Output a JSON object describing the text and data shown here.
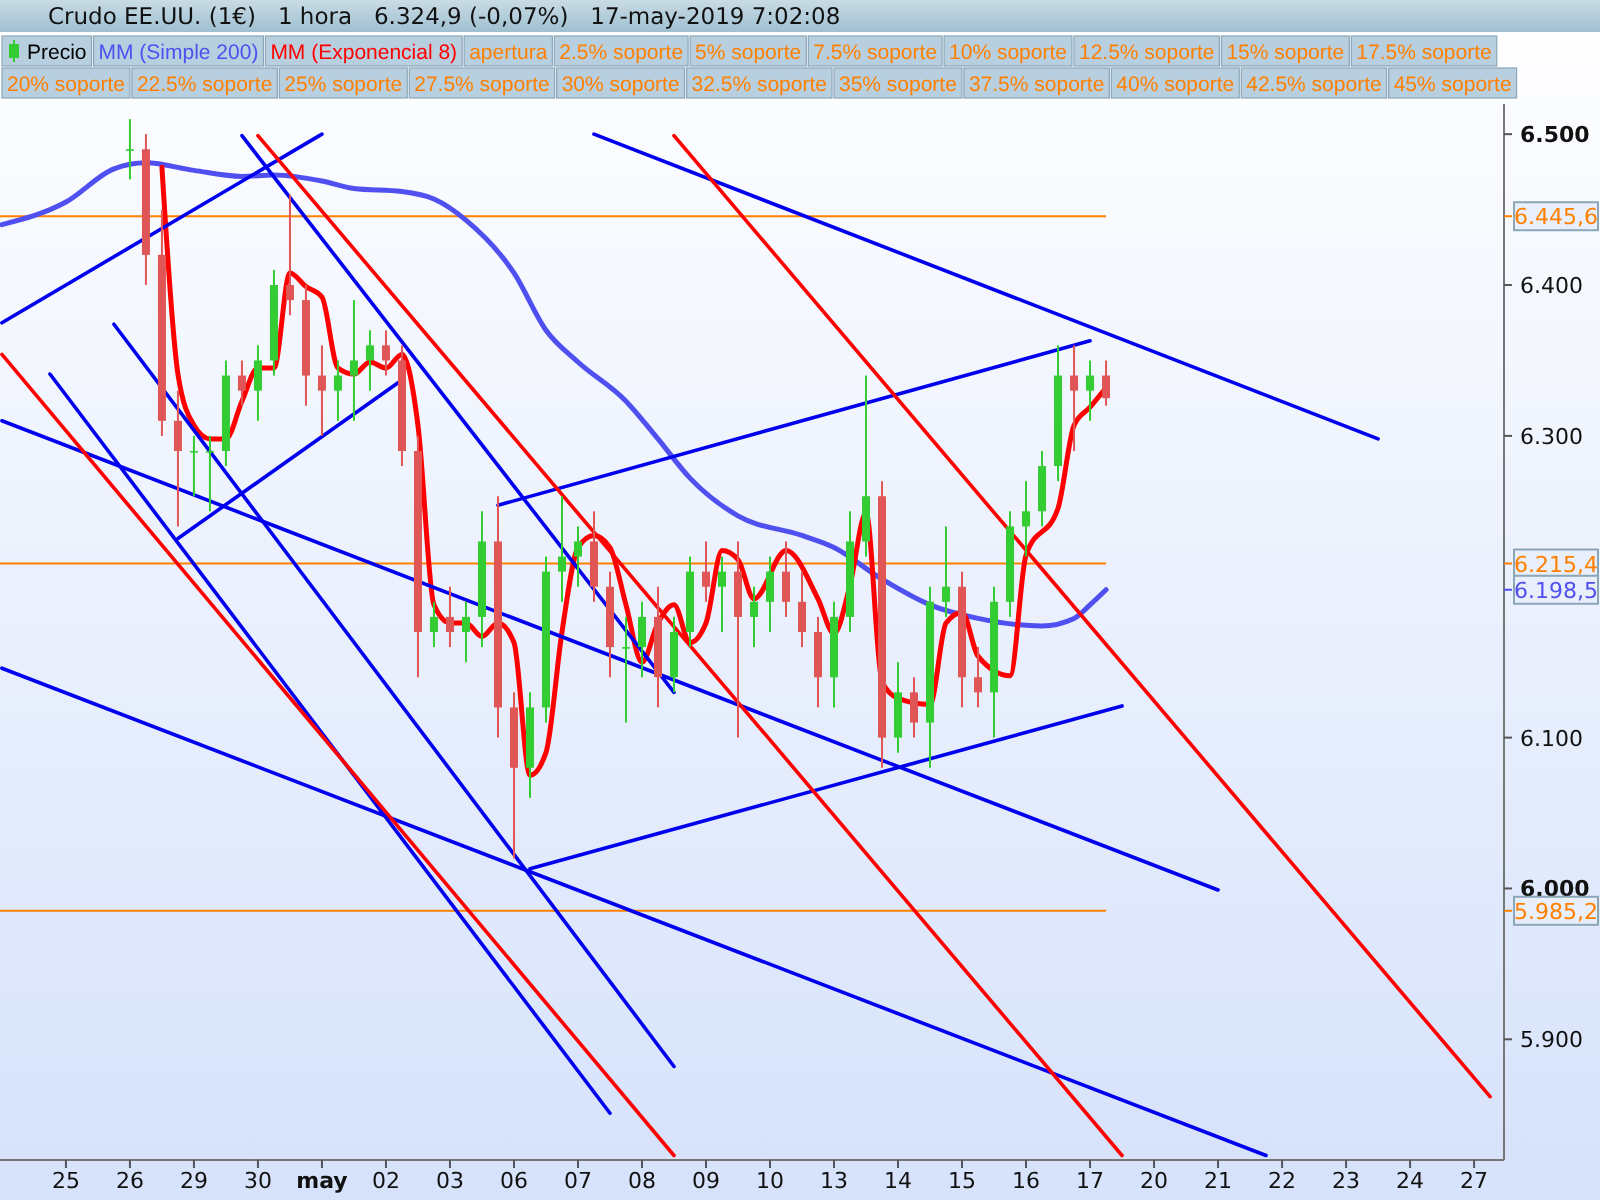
{
  "chart_data": {
    "type": "candlestick",
    "title": "Crudo EE.UU. (1€)   1 hora   6.324,9 (-0,07%)   17-may-2019 7:02:08",
    "legend": "top",
    "categories": [
      null,
      null,
      null,
      null,
      "25",
      null,
      null,
      null,
      "26",
      null,
      null,
      null,
      "29",
      null,
      null,
      null,
      "30",
      null,
      null,
      null,
      "may",
      null,
      null,
      null,
      "02",
      null,
      null,
      null,
      "03",
      null,
      null,
      null,
      "06",
      null,
      null,
      null,
      "07",
      null,
      null,
      null,
      "08",
      null,
      null,
      null,
      "09",
      null,
      null,
      null,
      "10",
      null,
      null,
      null,
      "13",
      null,
      null,
      null,
      "14",
      null,
      null,
      null,
      "15",
      null,
      null,
      null,
      "16",
      null,
      null,
      null,
      "17",
      null,
      null,
      null,
      "20",
      null,
      null,
      null,
      "21",
      null,
      null,
      null,
      "22",
      null,
      null,
      null,
      "23",
      null,
      null,
      null,
      "24",
      null,
      null,
      null,
      "27",
      null
    ],
    "ylim": [
      5.82,
      6.52
    ],
    "yticks": [
      {
        "value": 5.9,
        "label": "5.900"
      },
      {
        "value": 6.0,
        "label": "6.000"
      },
      {
        "value": 6.1,
        "label": "6.100"
      },
      {
        "value": 6.3,
        "label": "6.300"
      },
      {
        "value": 6.4,
        "label": "6.400"
      },
      {
        "value": 6.5,
        "label": "6.500"
      }
    ],
    "ref_lines": [
      {
        "axis": "y",
        "value": 6.4456,
        "label": "6.445,6",
        "color": "#ff8000"
      },
      {
        "axis": "y",
        "value": 6.2154,
        "label": "6.215,4",
        "color": "#ff8000"
      },
      {
        "axis": "y",
        "value": 5.9852,
        "label": "5.985,2",
        "color": "#ff8000"
      }
    ],
    "annotations": [
      "apertura",
      "2.5% soporte",
      "5% soporte",
      "7.5% soporte",
      "10% soporte",
      "12.5% soporte",
      "15% soporte",
      "17.5% soporte",
      "20% soporte",
      "22.5% soporte",
      "25% soporte",
      "27.5% soporte",
      "30% soporte",
      "32.5% soporte",
      "35% soporte",
      "37.5% soporte",
      "40% soporte",
      "42.5% soporte",
      "45% soporte",
      "6.198,5"
    ],
    "series": [
      {
        "type": "candlestick",
        "name": "Precio",
        "ohlc": [
          null,
          null,
          null,
          null,
          null,
          null,
          null,
          null,
          [
            6.49,
            6.51,
            6.47,
            6.49
          ],
          [
            6.49,
            6.5,
            6.4,
            6.42
          ],
          [
            6.42,
            6.45,
            6.3,
            6.31
          ],
          [
            6.31,
            6.33,
            6.24,
            6.29
          ],
          [
            6.29,
            6.3,
            6.26,
            6.29
          ],
          [
            6.29,
            6.3,
            6.25,
            6.29
          ],
          [
            6.29,
            6.35,
            6.28,
            6.34
          ],
          [
            6.34,
            6.35,
            6.32,
            6.33
          ],
          [
            6.33,
            6.36,
            6.31,
            6.35
          ],
          [
            6.35,
            6.41,
            6.34,
            6.4
          ],
          [
            6.4,
            6.46,
            6.38,
            6.39
          ],
          [
            6.39,
            6.4,
            6.32,
            6.34
          ],
          [
            6.34,
            6.36,
            6.3,
            6.33
          ],
          [
            6.33,
            6.35,
            6.31,
            6.34
          ],
          [
            6.34,
            6.39,
            6.31,
            6.35
          ],
          [
            6.35,
            6.37,
            6.33,
            6.36
          ],
          [
            6.36,
            6.37,
            6.34,
            6.35
          ],
          [
            6.35,
            6.36,
            6.28,
            6.29
          ],
          [
            6.29,
            6.3,
            6.14,
            6.17
          ],
          [
            6.17,
            6.19,
            6.16,
            6.18
          ],
          [
            6.18,
            6.2,
            6.16,
            6.17
          ],
          [
            6.17,
            6.19,
            6.15,
            6.18
          ],
          [
            6.18,
            6.25,
            6.16,
            6.23
          ],
          [
            6.23,
            6.26,
            6.1,
            6.12
          ],
          [
            6.12,
            6.13,
            6.02,
            6.08
          ],
          [
            6.08,
            6.13,
            6.06,
            6.12
          ],
          [
            6.12,
            6.22,
            6.11,
            6.21
          ],
          [
            6.21,
            6.26,
            6.19,
            6.22
          ],
          [
            6.22,
            6.24,
            6.2,
            6.23
          ],
          [
            6.23,
            6.25,
            6.19,
            6.2
          ],
          [
            6.2,
            6.21,
            6.14,
            6.16
          ],
          [
            6.16,
            6.18,
            6.11,
            6.16
          ],
          [
            6.16,
            6.19,
            6.14,
            6.18
          ],
          [
            6.18,
            6.2,
            6.12,
            6.14
          ],
          [
            6.14,
            6.18,
            6.13,
            6.17
          ],
          [
            6.17,
            6.22,
            6.16,
            6.21
          ],
          [
            6.21,
            6.23,
            6.19,
            6.2
          ],
          [
            6.2,
            6.22,
            6.17,
            6.21
          ],
          [
            6.21,
            6.23,
            6.1,
            6.18
          ],
          [
            6.18,
            6.2,
            6.16,
            6.19
          ],
          [
            6.19,
            6.22,
            6.17,
            6.21
          ],
          [
            6.21,
            6.23,
            6.18,
            6.19
          ],
          [
            6.19,
            6.21,
            6.16,
            6.17
          ],
          [
            6.17,
            6.18,
            6.12,
            6.14
          ],
          [
            6.14,
            6.19,
            6.12,
            6.18
          ],
          [
            6.18,
            6.25,
            6.17,
            6.23
          ],
          [
            6.23,
            6.34,
            6.22,
            6.26
          ],
          [
            6.26,
            6.27,
            6.08,
            6.1
          ],
          [
            6.1,
            6.15,
            6.09,
            6.13
          ],
          [
            6.13,
            6.14,
            6.1,
            6.11
          ],
          [
            6.11,
            6.2,
            6.08,
            6.19
          ],
          [
            6.19,
            6.24,
            6.18,
            6.2
          ],
          [
            6.2,
            6.21,
            6.12,
            6.14
          ],
          [
            6.14,
            6.16,
            6.12,
            6.13
          ],
          [
            6.13,
            6.2,
            6.1,
            6.19
          ],
          [
            6.19,
            6.25,
            6.18,
            6.24
          ],
          [
            6.24,
            6.27,
            6.22,
            6.25
          ],
          [
            6.25,
            6.29,
            6.24,
            6.28
          ],
          [
            6.28,
            6.36,
            6.27,
            6.34
          ],
          [
            6.34,
            6.36,
            6.29,
            6.33
          ],
          [
            6.33,
            6.35,
            6.31,
            6.34
          ],
          [
            6.34,
            6.35,
            6.32,
            6.325
          ],
          null,
          null,
          null,
          null,
          null,
          null,
          null,
          null,
          null,
          null,
          null,
          null,
          null,
          null,
          null,
          null,
          null,
          null,
          null,
          null,
          null,
          null,
          null,
          null
        ]
      },
      {
        "type": "line",
        "name": "MM (Simple 200)",
        "color": "#5050f0",
        "values": [
          6.44,
          null,
          null,
          null,
          6.455,
          null,
          null,
          6.477,
          null,
          6.481,
          null,
          null,
          6.476,
          null,
          null,
          6.472,
          null,
          6.473,
          null,
          null,
          6.469,
          null,
          6.464,
          null,
          null,
          6.462,
          null,
          6.457,
          null,
          6.443,
          null,
          null,
          6.408,
          null,
          6.37,
          null,
          6.349,
          null,
          null,
          6.323,
          null,
          6.298,
          null,
          6.272,
          null,
          null,
          6.247,
          null,
          null,
          null,
          6.234,
          null,
          6.226,
          null,
          null,
          6.205,
          null,
          null,
          6.188,
          null,
          null,
          6.179,
          null,
          null,
          null,
          6.174,
          null,
          6.179,
          6.188,
          6.198,
          null,
          null,
          null,
          null,
          null,
          null,
          null,
          null,
          null,
          null,
          null,
          null,
          null,
          null,
          null,
          null,
          null,
          null,
          null,
          null,
          null,
          null,
          null,
          null
        ]
      },
      {
        "type": "line",
        "name": "MM (Exponencial 8)",
        "color": "#ff0000",
        "values": [
          null,
          null,
          null,
          null,
          null,
          null,
          null,
          null,
          null,
          null,
          6.478,
          6.341,
          6.307,
          6.298,
          6.298,
          6.323,
          6.345,
          6.345,
          6.408,
          6.399,
          6.392,
          6.345,
          6.341,
          6.349,
          6.345,
          6.354,
          6.307,
          6.188,
          6.176,
          6.176,
          6.167,
          6.176,
          6.163,
          6.075,
          6.09,
          6.17,
          6.226,
          6.234,
          6.226,
          6.188,
          6.15,
          6.176,
          6.188,
          6.163,
          6.176,
          6.224,
          6.218,
          6.192,
          null,
          6.224,
          null,
          6.192,
          6.169,
          6.201,
          6.249,
          6.137,
          6.126,
          null,
          6.122,
          6.176,
          6.183,
          6.154,
          null,
          6.141,
          6.221,
          null,
          6.252,
          6.307,
          6.319,
          6.332,
          null,
          null,
          null,
          null,
          null,
          null,
          null,
          null,
          null,
          null,
          null,
          null,
          null,
          null,
          null,
          null,
          null,
          null,
          null,
          null,
          null,
          null,
          null,
          null
        ]
      },
      {
        "type": "line",
        "color": "#0000ee",
        "values": [
          6.375,
          null,
          null,
          null,
          null,
          null,
          null,
          null,
          null,
          null,
          null,
          null,
          null,
          null,
          null,
          null,
          null,
          null,
          null,
          null,
          6.5,
          null,
          null,
          null,
          null,
          null,
          null,
          null,
          null,
          null,
          null,
          null,
          null,
          null,
          null,
          null,
          null,
          null,
          null,
          null,
          null,
          null,
          null,
          null,
          null,
          null,
          null,
          null,
          null,
          null,
          null,
          null,
          null,
          null,
          null,
          null,
          null,
          null,
          null,
          null,
          null,
          null,
          null,
          null,
          null,
          null,
          null,
          null,
          null,
          null,
          null,
          null,
          null,
          null,
          null,
          null,
          null,
          null,
          null,
          null,
          null,
          null,
          null,
          null,
          null,
          null,
          null,
          null,
          null,
          null,
          null,
          null,
          null,
          null
        ]
      },
      {
        "type": "line",
        "color": "#0000ee",
        "values": [
          null,
          null,
          null,
          null,
          null,
          null,
          null,
          6.374,
          null,
          null,
          null,
          null,
          null,
          null,
          null,
          null,
          null,
          null,
          null,
          null,
          null,
          null,
          null,
          null,
          null,
          null,
          null,
          null,
          null,
          null,
          null,
          null,
          null,
          null,
          null,
          null,
          null,
          null,
          null,
          null,
          null,
          null,
          5.882,
          null,
          null,
          null,
          null,
          null,
          null,
          null,
          null,
          null,
          null,
          null,
          null,
          null,
          null,
          null,
          null,
          null,
          null,
          null,
          null,
          null,
          null,
          null,
          null,
          null,
          null,
          null,
          null,
          null,
          null,
          null,
          null,
          null,
          null,
          null,
          null,
          null,
          null,
          null,
          null,
          null,
          null,
          null,
          null,
          null,
          null,
          null,
          null,
          null,
          null,
          null
        ]
      },
      {
        "type": "line",
        "color": "#0000ee",
        "values": [
          null,
          null,
          null,
          6.341,
          null,
          null,
          null,
          null,
          null,
          null,
          null,
          null,
          null,
          null,
          null,
          null,
          null,
          null,
          null,
          null,
          null,
          null,
          null,
          null,
          null,
          null,
          null,
          null,
          null,
          null,
          null,
          null,
          null,
          null,
          null,
          null,
          null,
          null,
          5.851,
          null,
          null,
          null,
          null,
          null,
          null,
          null,
          null,
          null,
          null,
          null,
          null,
          null,
          null,
          null,
          null,
          null,
          null,
          null,
          null,
          null,
          null,
          null,
          null,
          null,
          null,
          null,
          null,
          null,
          null,
          null,
          null,
          null,
          null,
          null,
          null,
          null,
          null,
          null,
          null,
          null,
          null,
          null,
          null,
          null,
          null,
          null,
          null,
          null,
          null,
          null,
          null,
          null,
          null,
          null
        ]
      },
      {
        "type": "line",
        "color": "#0000ee",
        "values": [
          6.31,
          null,
          null,
          null,
          null,
          null,
          null,
          null,
          null,
          null,
          null,
          null,
          null,
          null,
          null,
          null,
          null,
          null,
          null,
          null,
          null,
          null,
          null,
          null,
          null,
          null,
          null,
          null,
          null,
          null,
          null,
          null,
          null,
          null,
          null,
          null,
          null,
          null,
          null,
          null,
          null,
          null,
          null,
          null,
          null,
          null,
          null,
          null,
          null,
          null,
          null,
          null,
          null,
          null,
          null,
          null,
          null,
          null,
          null,
          null,
          null,
          null,
          null,
          null,
          null,
          null,
          null,
          null,
          null,
          null,
          null,
          null,
          null,
          null,
          null,
          null,
          5.999,
          null,
          null,
          null,
          null,
          null,
          null,
          null,
          null,
          null,
          null,
          null,
          null,
          null,
          null,
          null,
          null,
          null
        ]
      },
      {
        "type": "line",
        "color": "#0000ee",
        "values": [
          6.146,
          null,
          null,
          null,
          null,
          null,
          null,
          null,
          null,
          null,
          null,
          null,
          null,
          null,
          null,
          null,
          null,
          null,
          null,
          null,
          null,
          null,
          null,
          null,
          null,
          null,
          null,
          null,
          null,
          null,
          null,
          null,
          null,
          null,
          null,
          null,
          null,
          null,
          null,
          null,
          null,
          null,
          null,
          null,
          null,
          null,
          null,
          null,
          null,
          null,
          null,
          null,
          null,
          null,
          null,
          null,
          null,
          null,
          null,
          null,
          null,
          null,
          null,
          null,
          null,
          null,
          null,
          null,
          null,
          null,
          null,
          null,
          null,
          null,
          null,
          null,
          null,
          null,
          null,
          5.823,
          null,
          null,
          null,
          null,
          null,
          null,
          null,
          null,
          null,
          null,
          null,
          null,
          null,
          null
        ]
      },
      {
        "type": "line",
        "color": "#0000ee",
        "values": [
          null,
          null,
          null,
          null,
          null,
          null,
          null,
          null,
          null,
          null,
          null,
          null,
          null,
          null,
          null,
          null,
          null,
          null,
          null,
          null,
          null,
          null,
          null,
          null,
          null,
          null,
          null,
          null,
          null,
          null,
          null,
          null,
          null,
          6.013,
          null,
          null,
          null,
          null,
          null,
          null,
          null,
          null,
          null,
          null,
          null,
          null,
          null,
          null,
          null,
          null,
          null,
          null,
          null,
          null,
          null,
          null,
          null,
          null,
          null,
          null,
          null,
          null,
          null,
          null,
          null,
          null,
          null,
          null,
          null,
          null,
          6.121,
          null,
          null,
          null,
          null,
          null,
          null,
          null,
          null,
          null,
          null,
          null,
          null,
          null,
          null,
          null,
          null,
          null,
          null,
          null,
          null,
          null,
          null,
          null
        ]
      },
      {
        "type": "line",
        "color": "#0000ee",
        "values": [
          null,
          null,
          null,
          null,
          null,
          null,
          null,
          null,
          null,
          null,
          null,
          6.232,
          null,
          null,
          null,
          null,
          null,
          null,
          null,
          null,
          null,
          null,
          null,
          null,
          null,
          6.337,
          null,
          null,
          null,
          null,
          null,
          null,
          null,
          null,
          null,
          null,
          null,
          null,
          null,
          null,
          null,
          null,
          null,
          null,
          null,
          null,
          null,
          null,
          null,
          null,
          null,
          null,
          null,
          null,
          null,
          null,
          null,
          null,
          null,
          null,
          null,
          null,
          null,
          null,
          null,
          null,
          null,
          null,
          null,
          null,
          null,
          null,
          null,
          null,
          null,
          null,
          null,
          null,
          null,
          null,
          null,
          null,
          null,
          null,
          null,
          null,
          null,
          null,
          null,
          null,
          null,
          null,
          null,
          null
        ]
      },
      {
        "type": "line",
        "color": "#0000ee",
        "values": [
          null,
          null,
          null,
          null,
          null,
          null,
          null,
          null,
          null,
          null,
          null,
          null,
          null,
          null,
          null,
          null,
          null,
          null,
          null,
          null,
          null,
          null,
          null,
          null,
          null,
          null,
          null,
          null,
          null,
          null,
          null,
          6.254,
          null,
          null,
          null,
          null,
          null,
          null,
          null,
          null,
          null,
          null,
          null,
          null,
          null,
          null,
          null,
          null,
          null,
          null,
          null,
          null,
          null,
          null,
          null,
          null,
          null,
          null,
          null,
          null,
          null,
          null,
          null,
          null,
          null,
          null,
          null,
          null,
          6.363,
          null,
          null,
          null,
          null,
          null,
          null,
          null,
          null,
          null,
          null,
          null,
          null,
          null,
          null,
          null,
          null,
          null,
          null,
          null,
          null,
          null,
          null,
          null,
          null,
          null
        ]
      },
      {
        "type": "line",
        "color": "#0000ee",
        "values": [
          null,
          null,
          null,
          null,
          null,
          null,
          null,
          null,
          null,
          null,
          null,
          null,
          null,
          null,
          null,
          6.499,
          null,
          null,
          null,
          null,
          null,
          null,
          null,
          null,
          null,
          null,
          null,
          null,
          null,
          null,
          null,
          null,
          null,
          null,
          null,
          null,
          null,
          null,
          null,
          null,
          null,
          null,
          6.13,
          null,
          null,
          null,
          null,
          null,
          null,
          null,
          null,
          null,
          null,
          null,
          null,
          null,
          null,
          null,
          null,
          null,
          null,
          null,
          null,
          null,
          null,
          null,
          null,
          null,
          null,
          null,
          null,
          null,
          null,
          null,
          null,
          null,
          null,
          null,
          null,
          null,
          null,
          null,
          null,
          null,
          null,
          null,
          null,
          null,
          null,
          null,
          null,
          null,
          null,
          null
        ]
      },
      {
        "type": "line",
        "color": "#0000ee",
        "values": [
          null,
          null,
          null,
          null,
          null,
          null,
          null,
          null,
          null,
          null,
          null,
          null,
          null,
          null,
          null,
          null,
          null,
          null,
          null,
          null,
          null,
          null,
          null,
          null,
          null,
          null,
          null,
          null,
          null,
          null,
          null,
          null,
          null,
          null,
          null,
          null,
          null,
          6.5,
          null,
          null,
          null,
          null,
          null,
          null,
          null,
          null,
          null,
          null,
          null,
          null,
          null,
          null,
          null,
          null,
          null,
          null,
          null,
          null,
          null,
          null,
          null,
          null,
          null,
          null,
          null,
          null,
          null,
          null,
          null,
          null,
          null,
          null,
          null,
          null,
          null,
          null,
          null,
          null,
          null,
          null,
          null,
          null,
          null,
          null,
          null,
          null,
          6.298,
          null,
          null,
          null,
          null,
          null,
          null,
          null
        ]
      },
      {
        "type": "line",
        "color": "#ff0000",
        "values": [
          6.354,
          null,
          null,
          null,
          null,
          null,
          null,
          null,
          null,
          null,
          null,
          null,
          null,
          null,
          null,
          null,
          null,
          null,
          null,
          null,
          null,
          null,
          null,
          null,
          null,
          null,
          null,
          null,
          null,
          null,
          null,
          null,
          null,
          null,
          null,
          null,
          null,
          null,
          null,
          null,
          null,
          null,
          5.823,
          null,
          null,
          null,
          null,
          null,
          null,
          null,
          null,
          null,
          null,
          null,
          null,
          null,
          null,
          null,
          null,
          null,
          null,
          null,
          null,
          null,
          null,
          null,
          null,
          null,
          null,
          null,
          null,
          null,
          null,
          null,
          null,
          null,
          null,
          null,
          null,
          null,
          null,
          null,
          null,
          null,
          null,
          null,
          null,
          null,
          null,
          null,
          null,
          null,
          null,
          null
        ]
      },
      {
        "type": "line",
        "color": "#ff0000",
        "values": [
          null,
          null,
          null,
          null,
          null,
          null,
          null,
          null,
          null,
          null,
          null,
          null,
          null,
          null,
          null,
          null,
          6.499,
          null,
          null,
          null,
          null,
          null,
          null,
          null,
          null,
          null,
          null,
          null,
          null,
          null,
          null,
          null,
          null,
          null,
          null,
          null,
          null,
          null,
          null,
          null,
          null,
          null,
          null,
          null,
          null,
          null,
          null,
          null,
          null,
          null,
          null,
          null,
          null,
          null,
          null,
          null,
          null,
          null,
          null,
          null,
          null,
          null,
          null,
          null,
          null,
          null,
          null,
          null,
          null,
          null,
          5.823,
          null,
          null,
          null,
          null,
          null,
          null,
          null,
          null,
          null,
          null,
          null,
          null,
          null,
          null,
          null,
          null,
          null,
          null,
          null,
          null,
          null,
          null,
          null
        ]
      },
      {
        "type": "line",
        "color": "#ff0000",
        "values": [
          null,
          null,
          null,
          null,
          null,
          null,
          null,
          null,
          null,
          null,
          null,
          null,
          null,
          null,
          null,
          null,
          null,
          null,
          null,
          null,
          null,
          null,
          null,
          null,
          null,
          null,
          null,
          null,
          null,
          null,
          null,
          null,
          null,
          null,
          null,
          null,
          null,
          null,
          null,
          null,
          null,
          null,
          6.499,
          null,
          null,
          null,
          null,
          null,
          null,
          null,
          null,
          null,
          null,
          null,
          null,
          null,
          null,
          null,
          null,
          null,
          null,
          null,
          null,
          null,
          null,
          null,
          null,
          null,
          null,
          null,
          null,
          null,
          null,
          null,
          null,
          null,
          null,
          null,
          null,
          null,
          null,
          null,
          null,
          null,
          null,
          null,
          null,
          null,
          null,
          null,
          null,
          null,
          null,
          5.862
        ]
      }
    ]
  }
}
